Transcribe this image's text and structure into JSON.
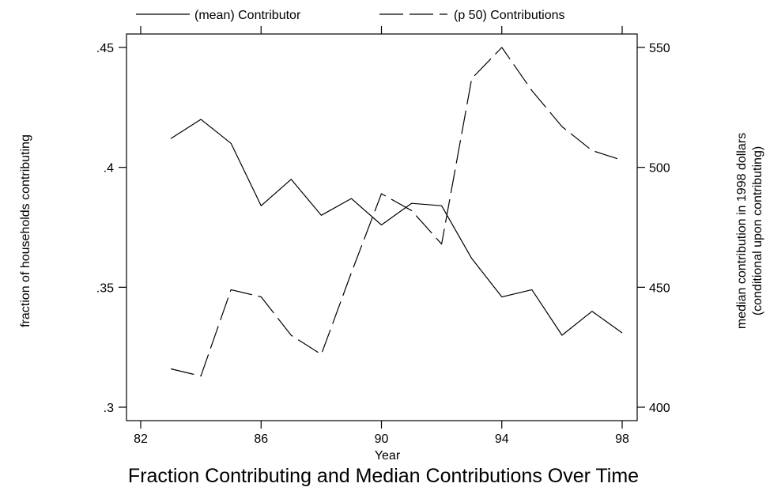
{
  "chart_data": {
    "type": "line",
    "title": "Fraction Contributing and Median Contributions Over Time",
    "xlabel": "Year",
    "ylabel_left": "fraction of households contributing",
    "ylabel_right_line1": "median contribution in 1998 dollars",
    "ylabel_right_line2": "(conditional upon contributing)",
    "xlim": [
      82,
      98
    ],
    "ylim_left": [
      0.3,
      0.45
    ],
    "ylim_right": [
      400,
      550
    ],
    "x_ticks": [
      82,
      86,
      90,
      94,
      98
    ],
    "x_tick_labels": [
      "82",
      "86",
      "90",
      "94",
      "98"
    ],
    "y_left_ticks": [
      0.3,
      0.35,
      0.4,
      0.45
    ],
    "y_left_tick_labels": [
      ".3",
      ".35",
      ".4",
      ".45"
    ],
    "y_right_ticks": [
      400,
      450,
      500,
      550
    ],
    "y_right_tick_labels": [
      "400",
      "450",
      "500",
      "550"
    ],
    "legend_position": "top",
    "grid": false,
    "x": [
      83,
      84,
      85,
      86,
      87,
      88,
      89,
      90,
      91,
      92,
      93,
      94,
      95,
      96,
      97,
      98
    ],
    "series": [
      {
        "name": "(mean) Contributor",
        "axis": "left",
        "style": "solid",
        "values": [
          0.412,
          0.42,
          0.41,
          0.384,
          0.395,
          0.38,
          0.387,
          0.376,
          0.385,
          0.384,
          0.362,
          0.346,
          0.349,
          0.33,
          0.34,
          0.331
        ]
      },
      {
        "name": "(p 50) Contributions",
        "axis": "right",
        "style": "dashed",
        "values": [
          416,
          413,
          449,
          446,
          430,
          422,
          456,
          489,
          482,
          468,
          537,
          550,
          532,
          517,
          507,
          503
        ]
      }
    ]
  }
}
